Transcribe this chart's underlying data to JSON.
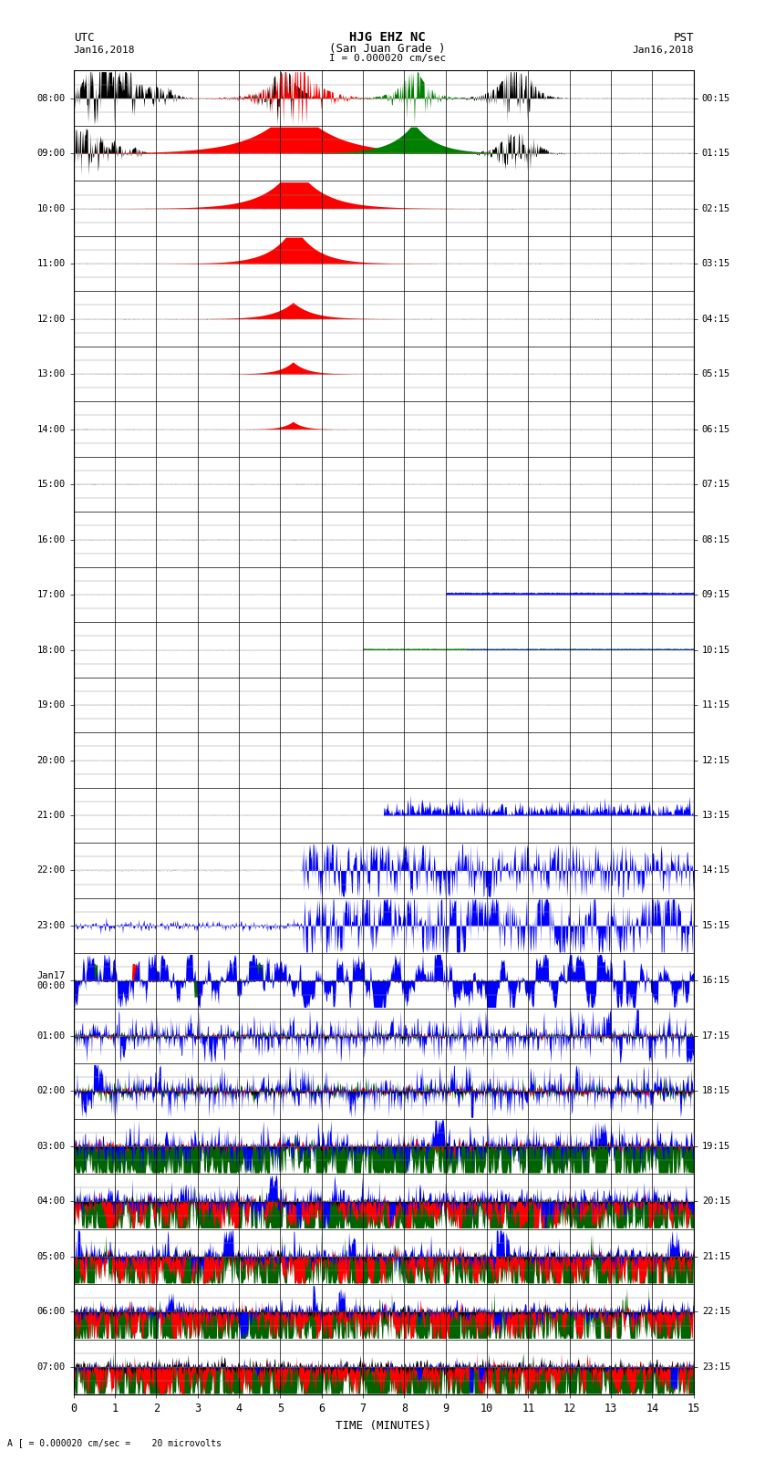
{
  "title_line1": "HJG EHZ NC",
  "title_line2": "(San Juan Grade )",
  "scale_text": "I = 0.000020 cm/sec",
  "left_label_line1": "UTC",
  "left_label_line2": "Jan16,2018",
  "right_label_line1": "PST",
  "right_label_line2": "Jan16,2018",
  "xlabel": "TIME (MINUTES)",
  "bottom_label": "A [ = 0.000020 cm/sec =    20 microvolts",
  "utc_times_left": [
    "08:00",
    "09:00",
    "10:00",
    "11:00",
    "12:00",
    "13:00",
    "14:00",
    "15:00",
    "16:00",
    "17:00",
    "18:00",
    "19:00",
    "20:00",
    "21:00",
    "22:00",
    "23:00",
    "Jan17\n00:00",
    "01:00",
    "02:00",
    "03:00",
    "04:00",
    "05:00",
    "06:00",
    "07:00"
  ],
  "pst_times_right": [
    "00:15",
    "01:15",
    "02:15",
    "03:15",
    "04:15",
    "05:15",
    "06:15",
    "07:15",
    "08:15",
    "09:15",
    "10:15",
    "11:15",
    "12:15",
    "13:15",
    "14:15",
    "15:15",
    "16:15",
    "17:15",
    "18:15",
    "19:15",
    "20:15",
    "21:15",
    "22:15",
    "23:15"
  ],
  "n_rows": 24,
  "n_minutes": 15,
  "background_color": "#ffffff",
  "grid_color_major": "#000000",
  "grid_color_minor": "#888888",
  "figsize": [
    8.5,
    16.13
  ],
  "dpi": 100,
  "minor_rows_per_row": 4
}
